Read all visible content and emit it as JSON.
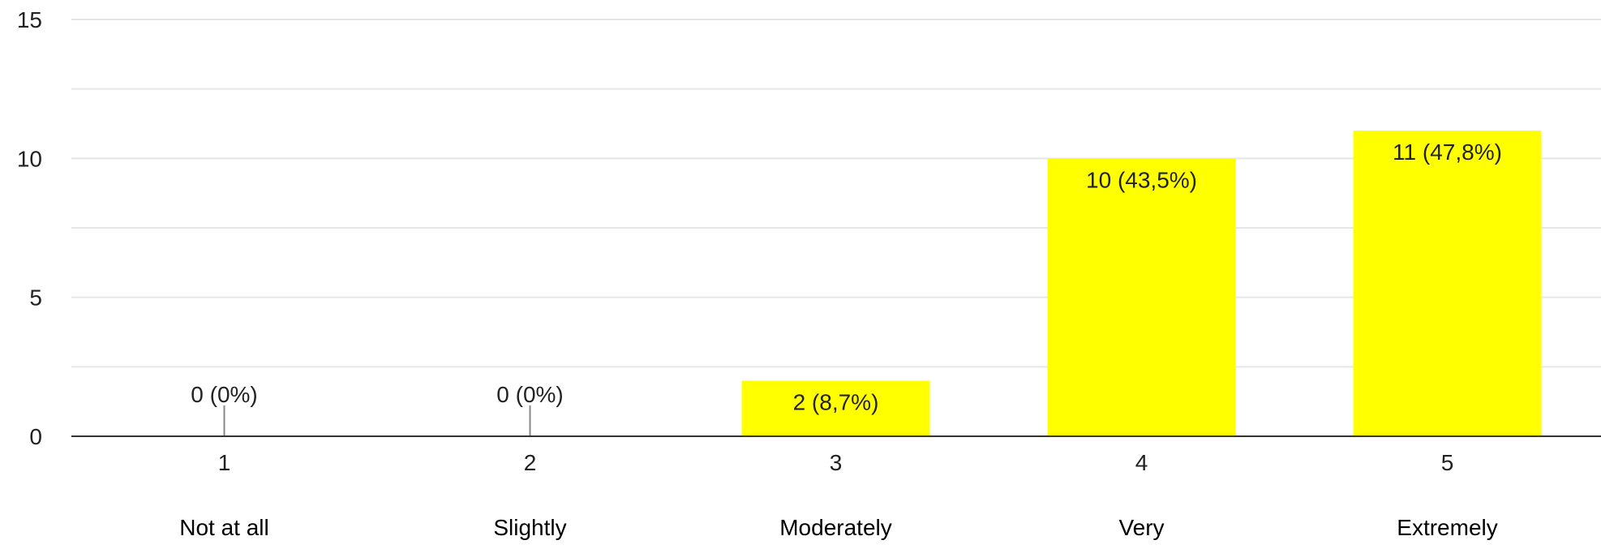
{
  "chart_data": {
    "type": "bar",
    "categories": [
      "1",
      "2",
      "3",
      "4",
      "5"
    ],
    "category_descriptions": [
      "Not at all",
      "Slightly",
      "Moderately",
      "Very",
      "Extremely"
    ],
    "values": [
      0,
      0,
      2,
      10,
      11
    ],
    "data_labels": [
      "0 (0%)",
      "0 (0%)",
      "2 (8,7%)",
      "10 (43,5%)",
      "11 (47,8%)"
    ],
    "y_ticks": [
      "0",
      "5",
      "10",
      "15"
    ],
    "ylim": [
      0,
      15
    ],
    "grid": true,
    "legend": "none",
    "title": "",
    "xlabel": "",
    "ylabel": "",
    "colors": {
      "bar": "#ffff00",
      "grid": "#e6e6e6",
      "axis": "#333333",
      "zero_bar_marker": "#888888"
    }
  }
}
